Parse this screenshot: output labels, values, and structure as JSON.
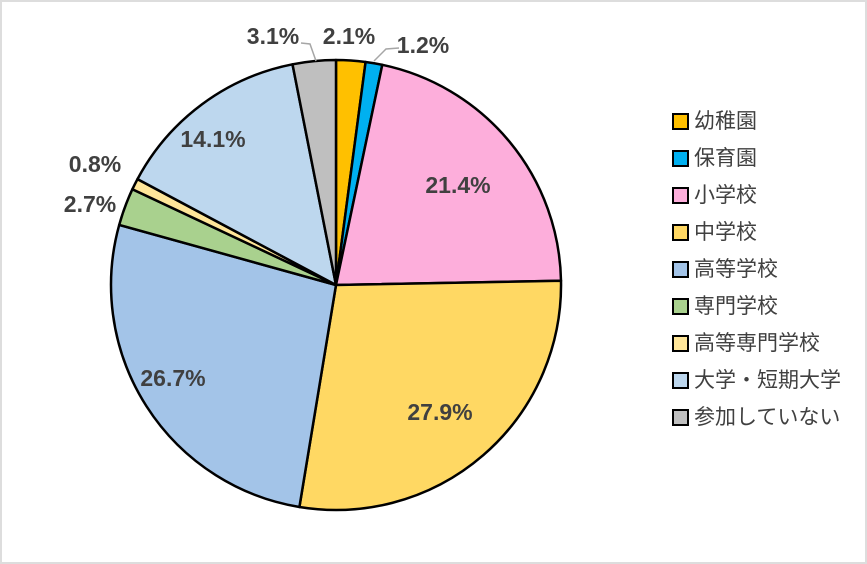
{
  "window": {
    "background": "#FFFFFF",
    "frame_border_color": "#DDDDDD"
  },
  "chart_data": {
    "type": "pie",
    "title": "",
    "unit": "%",
    "categories": [
      "幼稚園",
      "保育園",
      "小学校",
      "中学校",
      "高等学校",
      "専門学校",
      "高等専門学校",
      "大学・短期大学",
      "参加していない"
    ],
    "values": [
      2.1,
      1.2,
      21.4,
      27.9,
      26.7,
      2.7,
      0.8,
      14.1,
      3.1
    ],
    "percent_labels": [
      "2.1%",
      "1.2%",
      "21.4%",
      "27.9%",
      "26.7%",
      "2.7%",
      "0.8%",
      "14.1%",
      "3.1%"
    ],
    "colors": [
      "#FFC000",
      "#00B0F0",
      "#FDAEDB",
      "#FFD863",
      "#A3C4E8",
      "#A9D18E",
      "#FFE699",
      "#BDD7EE",
      "#BFBFBF"
    ],
    "slice_border_color": "#000000",
    "label_color": "#404040",
    "leader_line_color": "#A6A6A6",
    "legend_position": "right",
    "start_angle": "top (12 o'clock)",
    "direction": "clockwise"
  },
  "legend": {
    "items": [
      {
        "label": "幼稚園",
        "color": "#FFC000"
      },
      {
        "label": "保育園",
        "color": "#00B0F0"
      },
      {
        "label": "小学校",
        "color": "#FDAEDB"
      },
      {
        "label": "中学校",
        "color": "#FFD863"
      },
      {
        "label": "高等学校",
        "color": "#A3C4E8"
      },
      {
        "label": "専門学校",
        "color": "#A9D18E"
      },
      {
        "label": "高等専門学校",
        "color": "#FFE699"
      },
      {
        "label": "大学・短期大学",
        "color": "#BDD7EE"
      },
      {
        "label": "参加していない",
        "color": "#BFBFBF"
      }
    ]
  }
}
